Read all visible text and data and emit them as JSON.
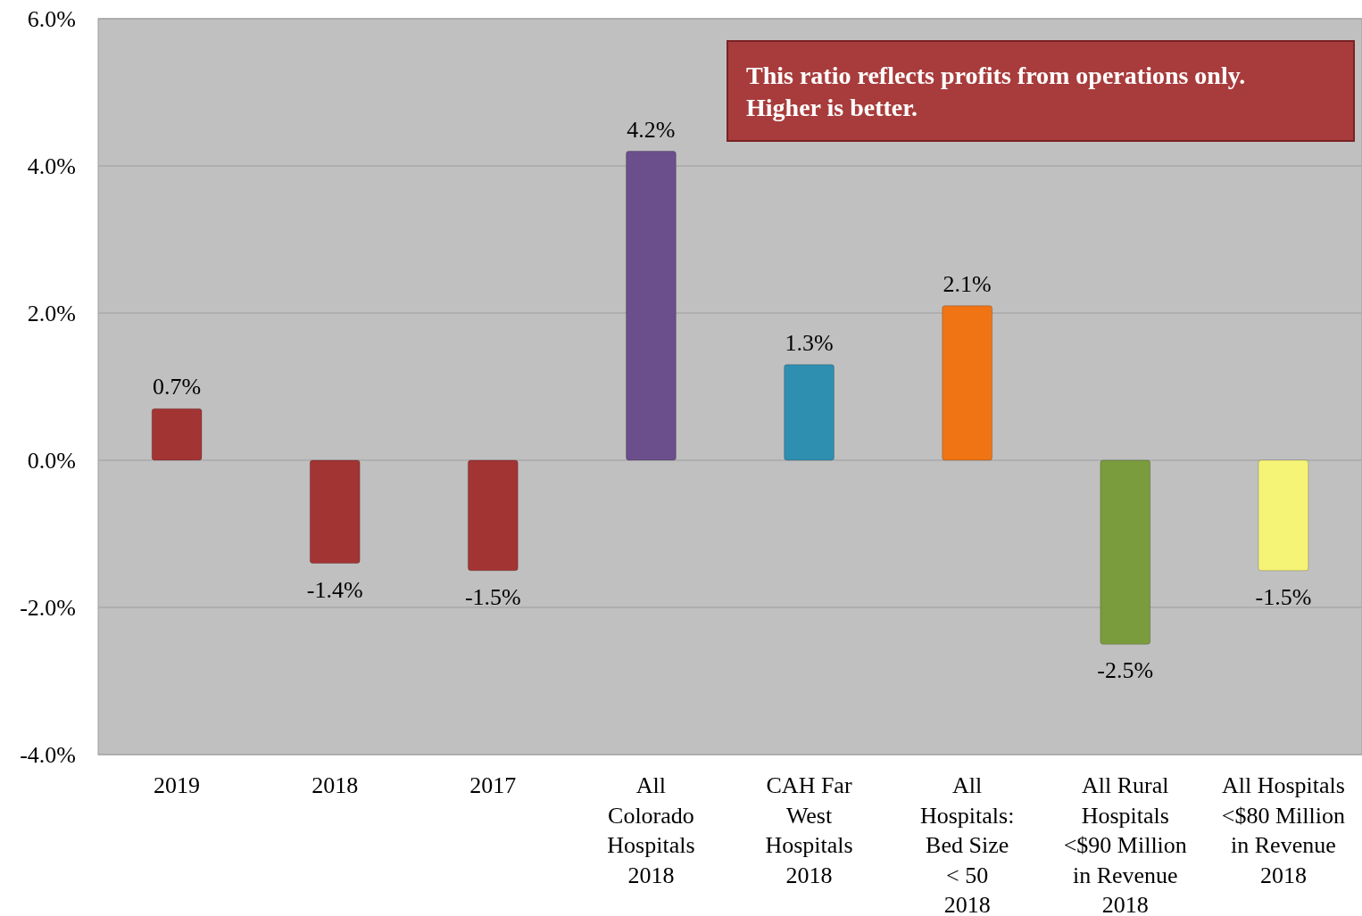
{
  "chart_data": {
    "type": "bar",
    "categories": [
      "2019",
      "2018",
      "2017",
      "All\nColorado\nHospitals\n2018",
      "CAH Far\nWest\nHospitals\n2018",
      "All\nHospitals:\nBed Size\n< 50\n2018",
      "All Rural\nHospitals\n<$90 Million\nin Revenue\n2018",
      "All Hospitals\n<$80 Million\nin Revenue\n2018"
    ],
    "values": [
      0.7,
      -1.4,
      -1.5,
      4.2,
      1.3,
      2.1,
      -2.5,
      -1.5
    ],
    "colors": [
      "#a33434",
      "#a33434",
      "#a33434",
      "#6b4e8c",
      "#2f8fb0",
      "#f07414",
      "#7a9c3c",
      "#f6f476"
    ],
    "value_labels": [
      "0.7%",
      "-1.4%",
      "-1.5%",
      "4.2%",
      "1.3%",
      "2.1%",
      "-2.5%",
      "-1.5%"
    ],
    "ylim": [
      -4,
      6
    ],
    "yticks": [
      {
        "value": -4,
        "label": "-4.0%"
      },
      {
        "value": -2,
        "label": "-2.0%"
      },
      {
        "value": 0,
        "label": "0.0%"
      },
      {
        "value": 2,
        "label": "2.0%"
      },
      {
        "value": 4,
        "label": "4.0%"
      },
      {
        "value": 6,
        "label": "6.0%"
      }
    ],
    "grid": "y",
    "annotations": [
      "This ratio reflects profits from operations only.\nHigher is better."
    ]
  }
}
